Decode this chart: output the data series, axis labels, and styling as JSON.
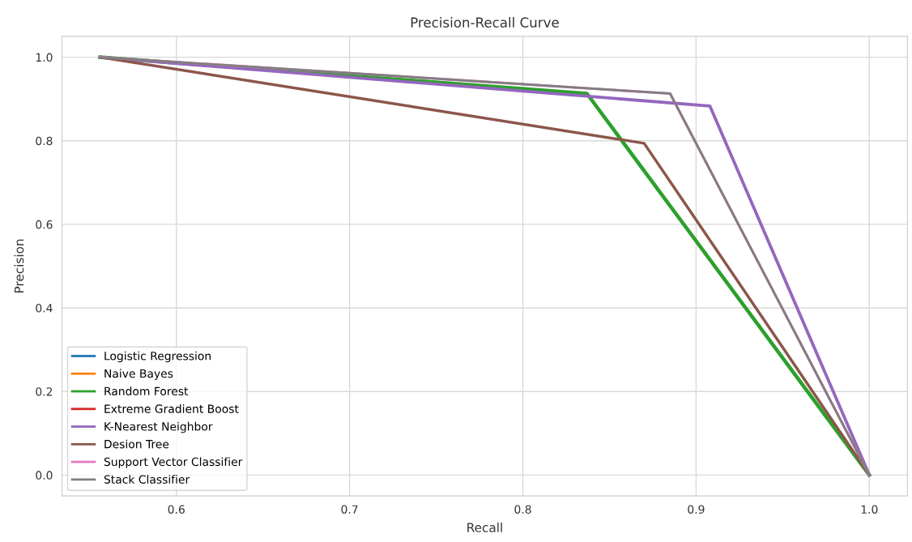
{
  "chart_data": {
    "type": "line",
    "title": "Precision-Recall Curve",
    "xlabel": "Recall",
    "ylabel": "Precision",
    "xlim": [
      0.534,
      1.022
    ],
    "ylim": [
      -0.05,
      1.05
    ],
    "xticks": [
      0.6,
      0.7,
      0.8,
      0.9,
      {
        "value": 1,
        "label": "1.0"
      }
    ],
    "yticks": [
      {
        "value": 0,
        "label": "0.0"
      },
      0.2,
      0.4,
      0.6,
      0.8,
      {
        "value": 1,
        "label": "1.0"
      }
    ],
    "grid": true,
    "legend": "bottom left",
    "marker": "none",
    "line_style": "solid",
    "series": [
      {
        "name": "Logistic Regression",
        "color": "#1f77b4",
        "x": [
          null,
          null,
          null
        ],
        "values": [
          null,
          null,
          null
        ]
      },
      {
        "name": "Naive Bayes",
        "color": "#ff7f0e",
        "x": [
          null,
          null,
          null
        ],
        "values": [
          null,
          null,
          null
        ]
      },
      {
        "name": "Random Forest",
        "color": "#2ca02c",
        "x": [
          0.556,
          0.837,
          1.0
        ],
        "values": [
          1.0,
          0.913,
          0.0
        ]
      },
      {
        "name": "Extreme Gradient Boost",
        "color": "#d62728",
        "x": [
          null,
          null,
          null
        ],
        "values": [
          null,
          null,
          null
        ]
      },
      {
        "name": "K-Nearest Neighbor",
        "color": "#9467bd",
        "x": [
          0.556,
          0.908,
          1.0
        ],
        "values": [
          1.0,
          0.883,
          0.0
        ]
      },
      {
        "name": "Desion Tree",
        "color": "#8c564b",
        "x": [
          0.556,
          0.87,
          1.0
        ],
        "values": [
          1.0,
          0.794,
          0.0
        ]
      },
      {
        "name": "Support Vector Classifier",
        "color": "#e377c2",
        "x": [
          0.556,
          0.885,
          1.0
        ],
        "values": [
          1.0,
          0.913,
          0.0
        ]
      },
      {
        "name": "Stack Classifier",
        "color": "#7f7f7f",
        "x": [
          0.556,
          0.885,
          1.0
        ],
        "values": [
          1.0,
          0.913,
          0.0
        ]
      }
    ]
  }
}
